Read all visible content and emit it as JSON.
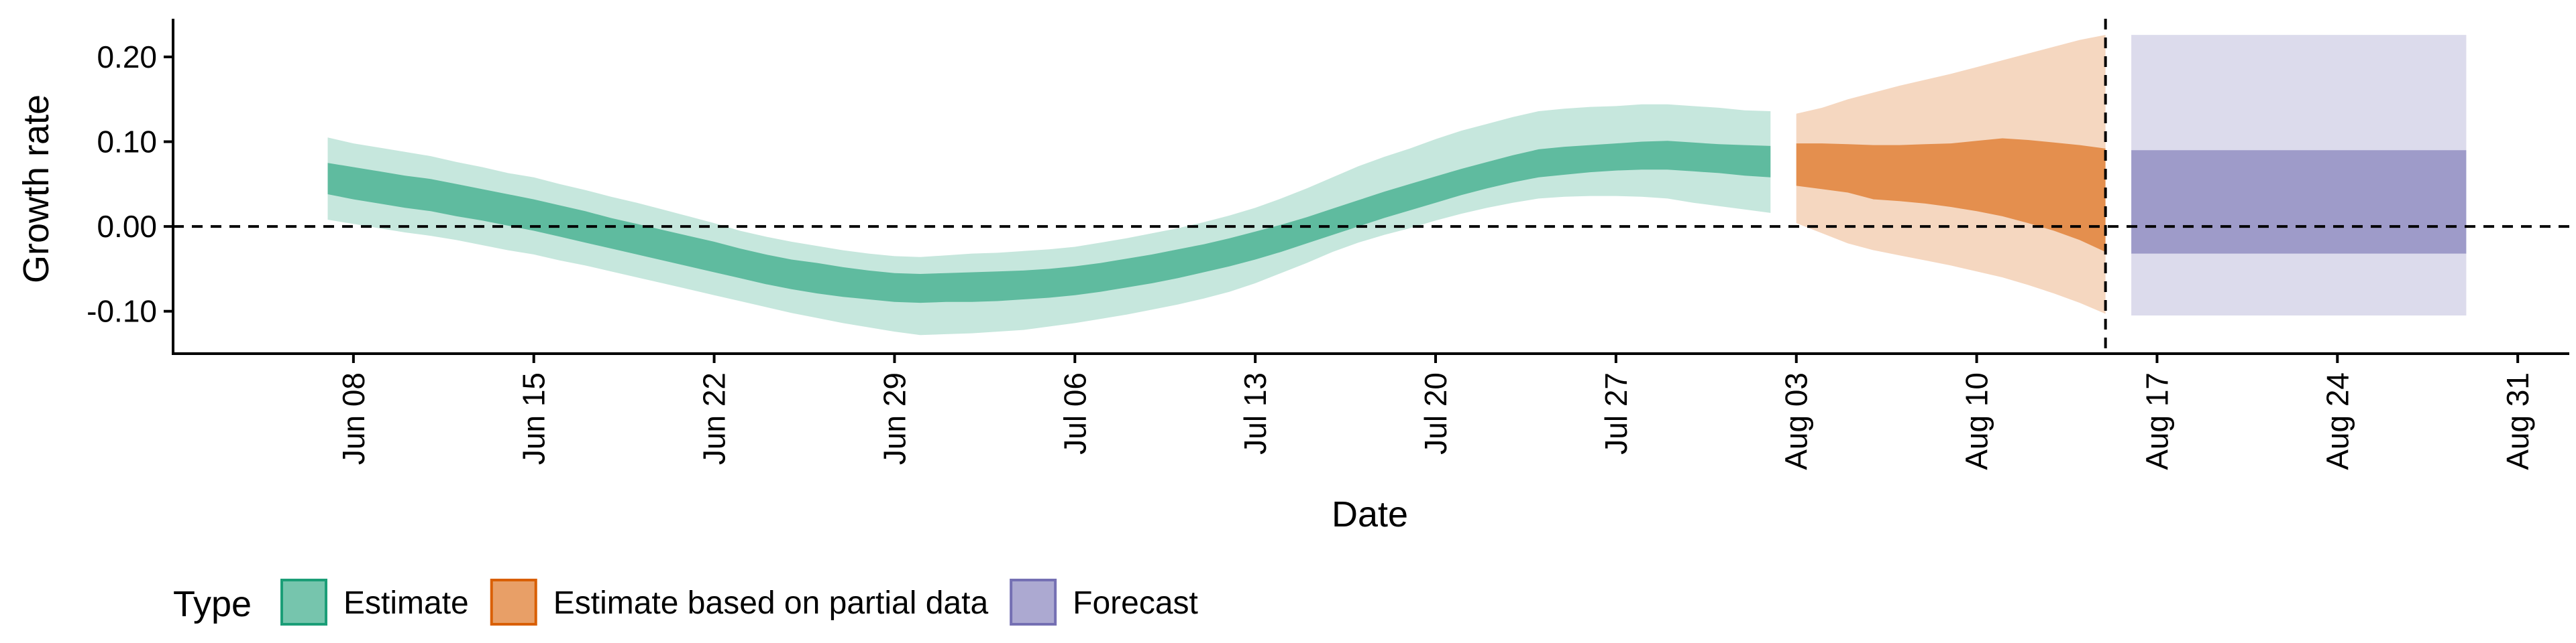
{
  "chart_data": {
    "type": "area",
    "xlabel": "Date",
    "ylabel": "Growth rate",
    "xlim": [
      "2020-06-01",
      "2020-09-02"
    ],
    "ylim": [
      -0.15,
      0.245
    ],
    "y_ticks": [
      {
        "value": -0.1,
        "label": "-0.10"
      },
      {
        "value": 0.0,
        "label": "0.00"
      },
      {
        "value": 0.1,
        "label": "0.10"
      },
      {
        "value": 0.2,
        "label": "0.20"
      }
    ],
    "x_ticks": [
      {
        "date": "2020-06-08",
        "label": "Jun 08"
      },
      {
        "date": "2020-06-15",
        "label": "Jun 15"
      },
      {
        "date": "2020-06-22",
        "label": "Jun 22"
      },
      {
        "date": "2020-06-29",
        "label": "Jun 29"
      },
      {
        "date": "2020-07-06",
        "label": "Jul 06"
      },
      {
        "date": "2020-07-13",
        "label": "Jul 13"
      },
      {
        "date": "2020-07-20",
        "label": "Jul 20"
      },
      {
        "date": "2020-07-27",
        "label": "Jul 27"
      },
      {
        "date": "2020-08-03",
        "label": "Aug 03"
      },
      {
        "date": "2020-08-10",
        "label": "Aug 10"
      },
      {
        "date": "2020-08-17",
        "label": "Aug 17"
      },
      {
        "date": "2020-08-24",
        "label": "Aug 24"
      },
      {
        "date": "2020-08-31",
        "label": "Aug 31"
      }
    ],
    "reference_lines": [
      {
        "axis": "y",
        "value": 0.0,
        "style": "dashed"
      },
      {
        "axis": "x",
        "value": "2020-08-15",
        "style": "dashed"
      }
    ],
    "grid": false,
    "legend": {
      "title": "Type",
      "position": "bottom-left"
    },
    "series": [
      {
        "name": "Estimate",
        "fill": "#1b9e77",
        "x": [
          "2020-06-07",
          "2020-06-08",
          "2020-06-09",
          "2020-06-10",
          "2020-06-11",
          "2020-06-12",
          "2020-06-13",
          "2020-06-14",
          "2020-06-15",
          "2020-06-16",
          "2020-06-17",
          "2020-06-18",
          "2020-06-19",
          "2020-06-20",
          "2020-06-21",
          "2020-06-22",
          "2020-06-23",
          "2020-06-24",
          "2020-06-25",
          "2020-06-26",
          "2020-06-27",
          "2020-06-28",
          "2020-06-29",
          "2020-06-30",
          "2020-07-01",
          "2020-07-02",
          "2020-07-03",
          "2020-07-04",
          "2020-07-05",
          "2020-07-06",
          "2020-07-07",
          "2020-07-08",
          "2020-07-09",
          "2020-07-10",
          "2020-07-11",
          "2020-07-12",
          "2020-07-13",
          "2020-07-14",
          "2020-07-15",
          "2020-07-16",
          "2020-07-17",
          "2020-07-18",
          "2020-07-19",
          "2020-07-20",
          "2020-07-21",
          "2020-07-22",
          "2020-07-23",
          "2020-07-24",
          "2020-07-25",
          "2020-07-26",
          "2020-07-27",
          "2020-07-28",
          "2020-07-29",
          "2020-07-30",
          "2020-07-31",
          "2020-08-01",
          "2020-08-02"
        ],
        "upper90": [
          0.105,
          0.098,
          0.093,
          0.088,
          0.083,
          0.076,
          0.07,
          0.063,
          0.058,
          0.05,
          0.043,
          0.035,
          0.028,
          0.02,
          0.012,
          0.004,
          -0.005,
          -0.012,
          -0.018,
          -0.023,
          -0.028,
          -0.032,
          -0.035,
          -0.036,
          -0.034,
          -0.032,
          -0.031,
          -0.029,
          -0.027,
          -0.024,
          -0.019,
          -0.014,
          -0.008,
          -0.002,
          0.005,
          0.013,
          0.022,
          0.033,
          0.045,
          0.058,
          0.071,
          0.082,
          0.092,
          0.103,
          0.113,
          0.121,
          0.129,
          0.136,
          0.139,
          0.141,
          0.142,
          0.144,
          0.144,
          0.142,
          0.14,
          0.137,
          0.136
        ],
        "upper50": [
          0.075,
          0.07,
          0.065,
          0.06,
          0.056,
          0.05,
          0.044,
          0.038,
          0.032,
          0.025,
          0.018,
          0.01,
          0.003,
          -0.004,
          -0.011,
          -0.018,
          -0.026,
          -0.033,
          -0.039,
          -0.043,
          -0.048,
          -0.052,
          -0.055,
          -0.056,
          -0.055,
          -0.054,
          -0.053,
          -0.052,
          -0.05,
          -0.047,
          -0.043,
          -0.038,
          -0.033,
          -0.027,
          -0.021,
          -0.014,
          -0.006,
          0.002,
          0.011,
          0.021,
          0.031,
          0.041,
          0.05,
          0.059,
          0.068,
          0.076,
          0.084,
          0.091,
          0.094,
          0.096,
          0.098,
          0.1,
          0.101,
          0.099,
          0.097,
          0.096,
          0.095
        ],
        "lower50": [
          0.038,
          0.032,
          0.027,
          0.022,
          0.018,
          0.012,
          0.007,
          0.001,
          -0.005,
          -0.012,
          -0.019,
          -0.026,
          -0.033,
          -0.04,
          -0.047,
          -0.054,
          -0.061,
          -0.068,
          -0.074,
          -0.079,
          -0.083,
          -0.086,
          -0.089,
          -0.09,
          -0.089,
          -0.089,
          -0.088,
          -0.086,
          -0.084,
          -0.081,
          -0.077,
          -0.072,
          -0.067,
          -0.061,
          -0.054,
          -0.047,
          -0.039,
          -0.03,
          -0.02,
          -0.01,
          0.0,
          0.01,
          0.019,
          0.028,
          0.037,
          0.045,
          0.052,
          0.058,
          0.061,
          0.064,
          0.066,
          0.067,
          0.067,
          0.065,
          0.063,
          0.06,
          0.058
        ],
        "lower90": [
          0.008,
          0.003,
          -0.002,
          -0.007,
          -0.011,
          -0.016,
          -0.022,
          -0.028,
          -0.033,
          -0.04,
          -0.046,
          -0.053,
          -0.06,
          -0.067,
          -0.074,
          -0.081,
          -0.088,
          -0.095,
          -0.102,
          -0.108,
          -0.114,
          -0.119,
          -0.124,
          -0.128,
          -0.127,
          -0.126,
          -0.124,
          -0.122,
          -0.118,
          -0.114,
          -0.109,
          -0.104,
          -0.098,
          -0.092,
          -0.085,
          -0.077,
          -0.067,
          -0.055,
          -0.043,
          -0.03,
          -0.019,
          -0.01,
          -0.002,
          0.007,
          0.015,
          0.022,
          0.028,
          0.033,
          0.035,
          0.036,
          0.036,
          0.035,
          0.033,
          0.028,
          0.024,
          0.02,
          0.016
        ]
      },
      {
        "name": "Estimate based on partial data",
        "fill": "#d95f02",
        "x": [
          "2020-08-03",
          "2020-08-04",
          "2020-08-05",
          "2020-08-06",
          "2020-08-07",
          "2020-08-08",
          "2020-08-09",
          "2020-08-10",
          "2020-08-11",
          "2020-08-12",
          "2020-08-13",
          "2020-08-14",
          "2020-08-15"
        ],
        "upper90": [
          0.133,
          0.14,
          0.15,
          0.158,
          0.166,
          0.173,
          0.18,
          0.188,
          0.196,
          0.204,
          0.212,
          0.22,
          0.226
        ],
        "upper50": [
          0.098,
          0.098,
          0.097,
          0.096,
          0.096,
          0.097,
          0.098,
          0.101,
          0.104,
          0.102,
          0.099,
          0.096,
          0.092
        ],
        "lower50": [
          0.048,
          0.044,
          0.04,
          0.032,
          0.03,
          0.027,
          0.023,
          0.018,
          0.012,
          0.004,
          -0.005,
          -0.016,
          -0.03
        ],
        "lower90": [
          0.004,
          -0.008,
          -0.02,
          -0.028,
          -0.034,
          -0.04,
          -0.046,
          -0.053,
          -0.06,
          -0.069,
          -0.079,
          -0.09,
          -0.103
        ]
      },
      {
        "name": "Forecast",
        "fill": "#7570b3",
        "x": [
          "2020-08-16",
          "2020-08-29"
        ],
        "upper90": [
          0.226,
          0.226
        ],
        "upper50": [
          0.09,
          0.09
        ],
        "lower50": [
          -0.032,
          -0.032
        ],
        "lower90": [
          -0.105,
          -0.105
        ]
      }
    ]
  }
}
